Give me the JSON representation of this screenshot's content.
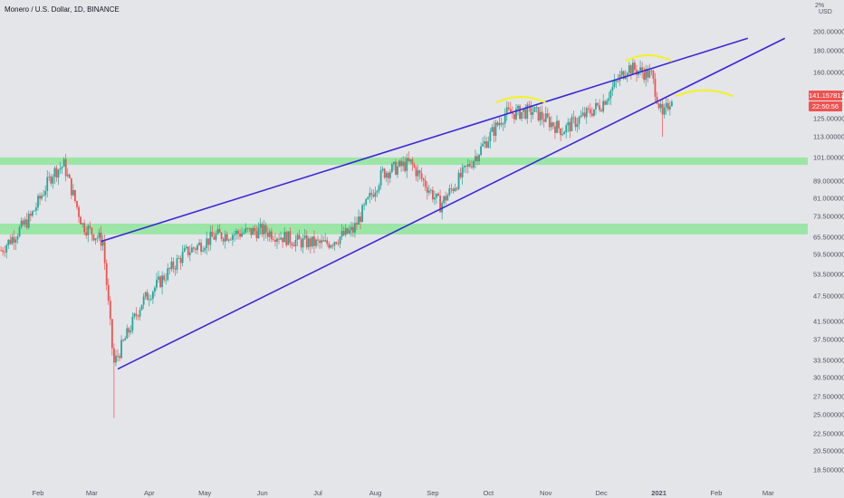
{
  "header": {
    "symbol_title": "Monero / U.S. Dollar, 1D, BINANCE"
  },
  "price_axis": {
    "currency": "USD",
    "scale_glyph": "2%",
    "ticks": [
      "200.000000",
      "180.000000",
      "160.000000",
      "143.000000",
      "125.000000",
      "113.000000",
      "101.000000",
      "89.000000",
      "81.000000",
      "73.500000",
      "65.500000",
      "59.500000",
      "53.500000",
      "47.500000",
      "41.500000",
      "37.500000",
      "33.500000",
      "30.500000",
      "27.500000",
      "25.000000",
      "22.500000",
      "20.500000",
      "18.500000"
    ],
    "last_price": "141.157813",
    "countdown": "22:50:56"
  },
  "date_axis": {
    "labels": [
      "Feb",
      "Mar",
      "Apr",
      "May",
      "Jun",
      "Jul",
      "Aug",
      "Sep",
      "Oct",
      "Nov",
      "Dec",
      "2021",
      "Feb",
      "Mar"
    ]
  },
  "colors": {
    "up": "#26a69a",
    "down": "#ef5350",
    "trendline": "#3b28d6",
    "zone_fill": "#8ee69a",
    "annotation": "#f5f21f",
    "background": "#e3e5e9"
  },
  "chart_data": {
    "type": "candlestick",
    "symbol": "XMRUSD",
    "timeframe": "1D",
    "y_scale": "log",
    "ylim": [
      17.5,
      230
    ],
    "x_range": [
      "2020-01-12",
      "2021-03-14"
    ],
    "ohlc_points": [
      {
        "date": "2020-01-12",
        "close": 61
      },
      {
        "date": "2020-01-28",
        "close": 73
      },
      {
        "date": "2020-02-09",
        "close": 93
      },
      {
        "date": "2020-02-15",
        "close": 97
      },
      {
        "date": "2020-02-25",
        "close": 70
      },
      {
        "date": "2020-03-07",
        "close": 64
      },
      {
        "date": "2020-03-12",
        "close": 36
      },
      {
        "date": "2020-03-13",
        "low": 24.5,
        "close": 33
      },
      {
        "date": "2020-03-28",
        "close": 46
      },
      {
        "date": "2020-04-20",
        "close": 60
      },
      {
        "date": "2020-05-07",
        "close": 66
      },
      {
        "date": "2020-06-01",
        "close": 68
      },
      {
        "date": "2020-06-20",
        "close": 64
      },
      {
        "date": "2020-07-05",
        "close": 63
      },
      {
        "date": "2020-07-20",
        "close": 68
      },
      {
        "date": "2020-08-05",
        "close": 93
      },
      {
        "date": "2020-08-20",
        "close": 98
      },
      {
        "date": "2020-09-05",
        "close": 78
      },
      {
        "date": "2020-09-25",
        "close": 103
      },
      {
        "date": "2020-10-10",
        "close": 128
      },
      {
        "date": "2020-10-25",
        "close": 130
      },
      {
        "date": "2020-11-10",
        "close": 117
      },
      {
        "date": "2020-12-01",
        "close": 135
      },
      {
        "date": "2020-12-15",
        "close": 165
      },
      {
        "date": "2020-12-28",
        "close": 158
      },
      {
        "date": "2021-01-03",
        "low": 113,
        "close": 125
      },
      {
        "date": "2021-01-08",
        "close": 141.157813
      }
    ],
    "support_zones": [
      {
        "low": 97,
        "high": 101
      },
      {
        "low": 66.5,
        "high": 70.5
      }
    ],
    "trendlines": [
      {
        "from": {
          "date": "2020-03-06",
          "price": 64
        },
        "to": {
          "date": "2021-02-18",
          "price": 193
        }
      },
      {
        "from": {
          "date": "2020-03-15",
          "price": 32
        },
        "to": {
          "date": "2021-03-10",
          "price": 193
        }
      }
    ],
    "annotations": [
      {
        "type": "arc",
        "date_from": "2020-10-05",
        "date_to": "2020-11-01",
        "price": 138
      },
      {
        "type": "arc",
        "date_from": "2020-12-14",
        "date_to": "2021-01-08",
        "price": 173
      },
      {
        "type": "arc",
        "date_from": "2021-01-10",
        "date_to": "2021-02-10",
        "price": 143
      }
    ]
  }
}
